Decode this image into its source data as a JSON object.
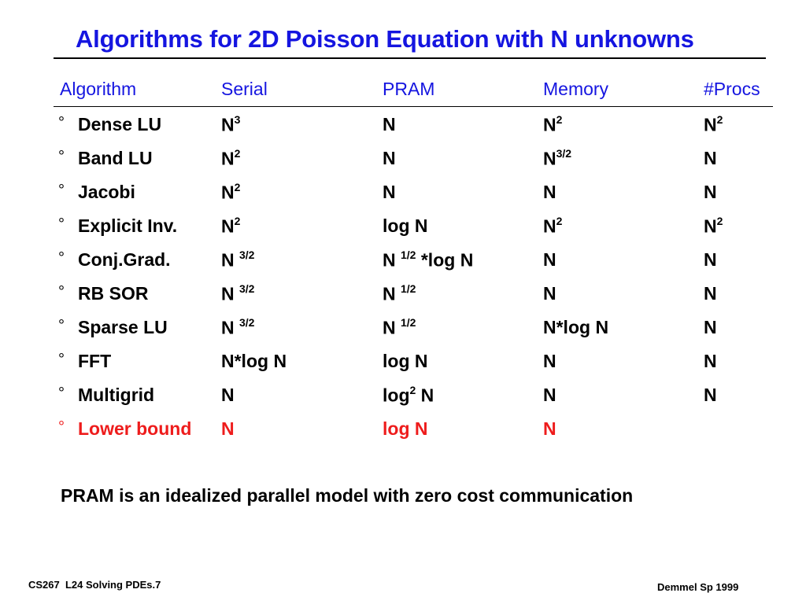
{
  "slide": {
    "title": "Algorithms for 2D Poisson Equation with N unknowns",
    "note": "PRAM is an idealized parallel model with zero cost communication",
    "footer_left": "CS267  L24 Solving PDEs.7",
    "footer_right": "Demmel Sp 1999",
    "title_color": "#1515e0",
    "highlight_color": "#ee1c1c"
  },
  "table": {
    "bullet_glyph": "°",
    "headers": {
      "algorithm": "Algorithm",
      "serial": "Serial",
      "pram": "PRAM",
      "memory": "Memory",
      "procs": "#Procs"
    },
    "rows": [
      {
        "algorithm": "Dense LU",
        "serial": {
          "base": "N",
          "exp": "3"
        },
        "pram": {
          "base": "N",
          "exp": ""
        },
        "memory": {
          "base": "N",
          "exp": "2"
        },
        "procs": {
          "base": "N",
          "exp": "2"
        }
      },
      {
        "algorithm": "Band LU",
        "serial": {
          "base": "N",
          "exp": "2"
        },
        "pram": {
          "base": "N",
          "exp": ""
        },
        "memory": {
          "base": "N",
          "exp": "3/2"
        },
        "procs": {
          "base": "N",
          "exp": ""
        }
      },
      {
        "algorithm": "Jacobi",
        "serial": {
          "base": "N",
          "exp": "2"
        },
        "pram": {
          "base": "N",
          "exp": ""
        },
        "memory": {
          "base": "N",
          "exp": ""
        },
        "procs": {
          "base": "N",
          "exp": ""
        }
      },
      {
        "algorithm": "Explicit Inv.",
        "serial": {
          "base": "N",
          "exp": "2"
        },
        "pram": {
          "base": "log N",
          "exp": ""
        },
        "memory": {
          "base": "N",
          "exp": "2"
        },
        "procs": {
          "base": "N",
          "exp": "2"
        }
      },
      {
        "algorithm": "Conj.Grad.",
        "serial": {
          "base": "N ",
          "exp": "3/2"
        },
        "pram": {
          "base": "N ",
          "exp": "1/2",
          "tail": " *log N"
        },
        "memory": {
          "base": "N",
          "exp": ""
        },
        "procs": {
          "base": "N",
          "exp": ""
        }
      },
      {
        "algorithm": "RB SOR",
        "serial": {
          "base": "N ",
          "exp": "3/2"
        },
        "pram": {
          "base": "N ",
          "exp": "1/2"
        },
        "memory": {
          "base": "N",
          "exp": ""
        },
        "procs": {
          "base": "N",
          "exp": ""
        }
      },
      {
        "algorithm": "Sparse LU",
        "serial": {
          "base": "N ",
          "exp": "3/2"
        },
        "pram": {
          "base": "N ",
          "exp": "1/2"
        },
        "memory": {
          "base": "N*log N",
          "exp": ""
        },
        "procs": {
          "base": "N",
          "exp": ""
        }
      },
      {
        "algorithm": "FFT",
        "serial": {
          "base": "N*log N",
          "exp": ""
        },
        "pram": {
          "base": "log N",
          "exp": ""
        },
        "memory": {
          "base": "N",
          "exp": ""
        },
        "procs": {
          "base": "N",
          "exp": ""
        }
      },
      {
        "algorithm": "Multigrid",
        "serial": {
          "base": "N",
          "exp": ""
        },
        "pram": {
          "base": "log",
          "exp": "2",
          "tail": " N"
        },
        "memory": {
          "base": "N",
          "exp": ""
        },
        "procs": {
          "base": "N",
          "exp": ""
        }
      },
      {
        "algorithm": "Lower bound",
        "highlight": true,
        "serial": {
          "base": "N",
          "exp": ""
        },
        "pram": {
          "base": "log N",
          "exp": ""
        },
        "memory": {
          "base": "N",
          "exp": ""
        },
        "procs": {
          "base": "",
          "exp": ""
        }
      }
    ]
  }
}
